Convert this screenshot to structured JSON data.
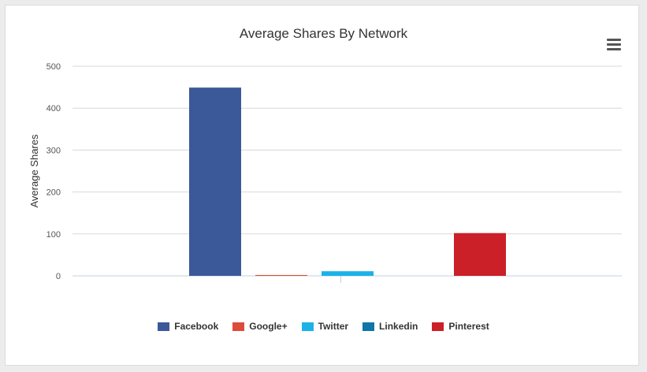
{
  "chart_data": {
    "type": "bar",
    "title": "Average Shares By Network",
    "xlabel": "",
    "ylabel": "Average Shares",
    "ylim": [
      0,
      500
    ],
    "yticks": [
      0,
      100,
      200,
      300,
      400,
      500
    ],
    "grid": true,
    "legend_position": "bottom",
    "series": [
      {
        "name": "Facebook",
        "value": 449,
        "color": "#3b5998"
      },
      {
        "name": "Google+",
        "value": 2,
        "color": "#dd4b39"
      },
      {
        "name": "Twitter",
        "value": 11,
        "color": "#1bb2e9"
      },
      {
        "name": "Linkedin",
        "value": 0,
        "color": "#0e76a8"
      },
      {
        "name": "Pinterest",
        "value": 102,
        "color": "#cb2027"
      }
    ]
  },
  "toolbar": {
    "menu_icon": "hamburger-menu-icon"
  }
}
